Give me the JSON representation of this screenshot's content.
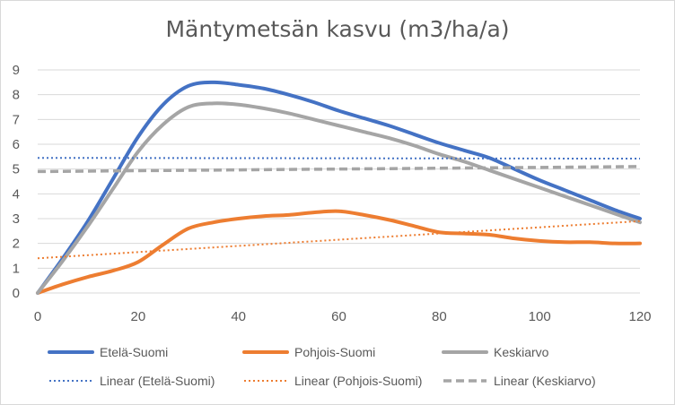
{
  "chart_data": {
    "type": "line",
    "title": "Mäntymetsän kasvu (m3/ha/a)",
    "xlabel": "",
    "ylabel": "",
    "xlim": [
      0,
      120
    ],
    "ylim": [
      0,
      9
    ],
    "x_ticks": [
      0,
      20,
      40,
      60,
      80,
      100,
      120
    ],
    "y_ticks": [
      0,
      1,
      2,
      3,
      4,
      5,
      6,
      7,
      8,
      9
    ],
    "grid": "horizontal",
    "legend_position": "bottom",
    "series": [
      {
        "name": "Etelä-Suomi",
        "color": "#4472C4",
        "style": "solid",
        "x": [
          0,
          5,
          10,
          15,
          20,
          25,
          30,
          35,
          40,
          45,
          50,
          55,
          60,
          65,
          70,
          75,
          80,
          85,
          90,
          95,
          100,
          105,
          110,
          115,
          120
        ],
        "y": [
          0,
          1.4,
          2.9,
          4.6,
          6.3,
          7.6,
          8.35,
          8.5,
          8.4,
          8.25,
          8.0,
          7.7,
          7.35,
          7.05,
          6.75,
          6.4,
          6.05,
          5.75,
          5.45,
          5.0,
          4.55,
          4.15,
          3.75,
          3.35,
          3.0
        ]
      },
      {
        "name": "Pohjois-Suomi",
        "color": "#ED7D31",
        "style": "solid",
        "x": [
          0,
          5,
          10,
          15,
          20,
          25,
          30,
          35,
          40,
          45,
          50,
          55,
          60,
          65,
          70,
          75,
          80,
          85,
          90,
          95,
          100,
          105,
          110,
          115,
          120
        ],
        "y": [
          0,
          0.35,
          0.65,
          0.9,
          1.25,
          1.95,
          2.6,
          2.85,
          3.0,
          3.1,
          3.15,
          3.25,
          3.3,
          3.15,
          2.95,
          2.7,
          2.45,
          2.4,
          2.35,
          2.2,
          2.1,
          2.05,
          2.05,
          2.0,
          2.0
        ]
      },
      {
        "name": "Keskiarvo",
        "color": "#A5A5A5",
        "style": "solid",
        "x": [
          0,
          5,
          10,
          15,
          20,
          25,
          30,
          35,
          40,
          45,
          50,
          55,
          60,
          65,
          70,
          75,
          80,
          85,
          90,
          95,
          100,
          105,
          110,
          115,
          120
        ],
        "y": [
          0,
          1.3,
          2.7,
          4.2,
          5.7,
          6.8,
          7.5,
          7.65,
          7.6,
          7.45,
          7.25,
          7.0,
          6.75,
          6.5,
          6.25,
          5.95,
          5.6,
          5.3,
          4.95,
          4.6,
          4.25,
          3.9,
          3.55,
          3.2,
          2.85
        ]
      },
      {
        "name": "Linear (Etelä-Suomi)",
        "color": "#4472C4",
        "style": "dotted",
        "x": [
          0,
          120
        ],
        "y": [
          5.45,
          5.42
        ]
      },
      {
        "name": "Linear (Pohjois-Suomi)",
        "color": "#ED7D31",
        "style": "dotted",
        "x": [
          0,
          120
        ],
        "y": [
          1.4,
          2.9
        ]
      },
      {
        "name": "Linear (Keskiarvo)",
        "color": "#A5A5A5",
        "style": "dashed",
        "x": [
          0,
          120
        ],
        "y": [
          4.9,
          5.1
        ]
      }
    ]
  }
}
